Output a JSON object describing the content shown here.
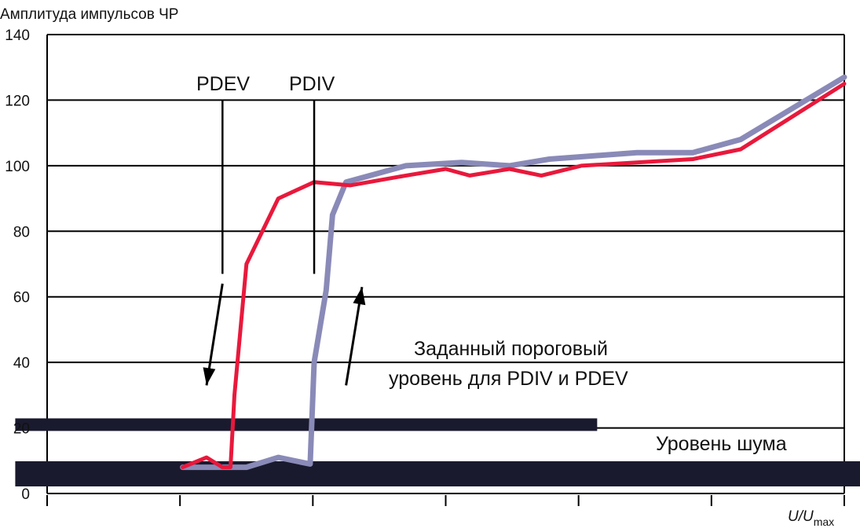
{
  "chart_data": {
    "type": "line",
    "ylabel": "Амплитуда импульсов ЧР",
    "xlabel_main": "U/U",
    "xlabel_sub": "max",
    "ylim": [
      0,
      140
    ],
    "xlim": [
      0,
      1
    ],
    "yticks": [
      0,
      20,
      40,
      60,
      80,
      100,
      120,
      140
    ],
    "grid": true,
    "colors": {
      "rising": "#8a8ab8",
      "falling": "#e8193c",
      "bands": "#1a1a2e",
      "grid": "#000000"
    },
    "series": [
      {
        "key": "rising",
        "values": [
          [
            0.17,
            8
          ],
          [
            0.25,
            8
          ],
          [
            0.29,
            11
          ],
          [
            0.33,
            9
          ],
          [
            0.335,
            40
          ],
          [
            0.35,
            62
          ],
          [
            0.358,
            85
          ],
          [
            0.375,
            95
          ],
          [
            0.45,
            100
          ],
          [
            0.52,
            101
          ],
          [
            0.58,
            100
          ],
          [
            0.63,
            102
          ],
          [
            0.74,
            104
          ],
          [
            0.81,
            104
          ],
          [
            0.87,
            108
          ],
          [
            1.0,
            127
          ]
        ]
      },
      {
        "key": "falling",
        "values": [
          [
            0.17,
            8
          ],
          [
            0.2,
            11
          ],
          [
            0.22,
            8
          ],
          [
            0.23,
            8
          ],
          [
            0.235,
            30
          ],
          [
            0.25,
            70
          ],
          [
            0.29,
            90
          ],
          [
            0.335,
            95
          ],
          [
            0.38,
            94
          ],
          [
            0.45,
            97
          ],
          [
            0.5,
            99
          ],
          [
            0.53,
            97
          ],
          [
            0.58,
            99
          ],
          [
            0.62,
            97
          ],
          [
            0.67,
            100
          ],
          [
            0.81,
            102
          ],
          [
            0.87,
            105
          ],
          [
            1.0,
            125
          ]
        ]
      }
    ],
    "bands": [
      {
        "key": "threshold",
        "x0": -0.04,
        "x1": 0.69,
        "y": 21
      },
      {
        "key": "noise",
        "x0": -0.04,
        "x1": 1.04,
        "y": 6
      }
    ],
    "annotations": {
      "pdev": "PDEV",
      "pdiv": "PDIV",
      "threshold_line1": "Заданный пороговый",
      "threshold_line2": "уровень для PDIV и PDEV",
      "noise": "Уровень шума"
    },
    "markers": [
      {
        "key": "pdev",
        "x": 0.22,
        "y_top": 120,
        "y_bottom": 67
      },
      {
        "key": "pdiv",
        "x": 0.335,
        "y_top": 120,
        "y_bottom": 67
      }
    ],
    "arrows": [
      {
        "key": "down",
        "from": [
          0.22,
          64
        ],
        "to": [
          0.2,
          33
        ]
      },
      {
        "key": "up",
        "from": [
          0.375,
          33
        ],
        "to": [
          0.395,
          63
        ]
      }
    ]
  }
}
